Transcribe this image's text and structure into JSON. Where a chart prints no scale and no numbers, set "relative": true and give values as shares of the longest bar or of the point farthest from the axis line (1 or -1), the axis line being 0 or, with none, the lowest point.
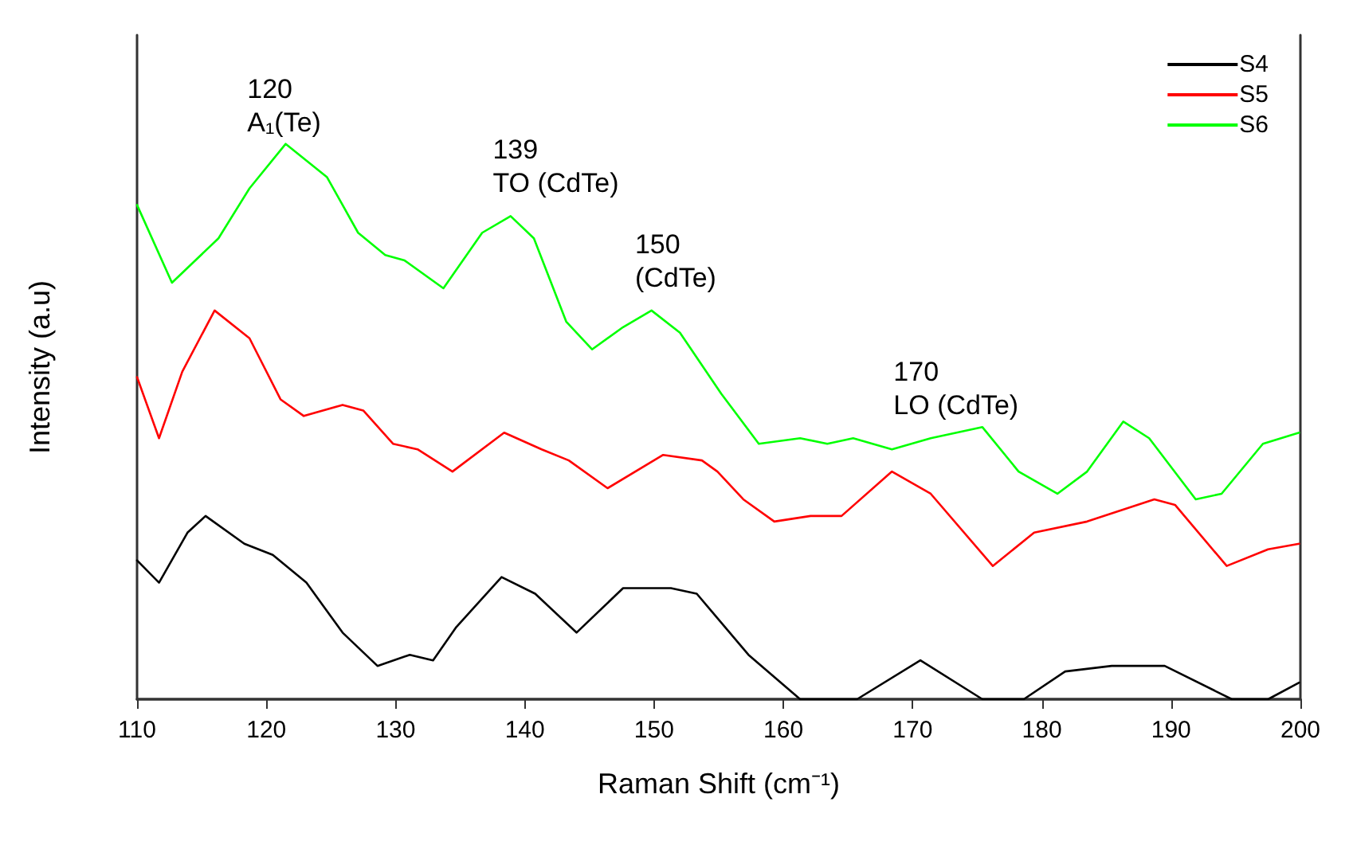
{
  "chart_data": {
    "type": "line",
    "relative": true,
    "xlabel": "Raman Shift (cm⁻¹)",
    "ylabel": "Intensity (a.u)",
    "xlim": [
      110,
      200
    ],
    "xticks": [
      110,
      120,
      130,
      140,
      150,
      160,
      170,
      180,
      190,
      200
    ],
    "grid": false,
    "legend": "top right",
    "marker": "none",
    "line_style": "solid",
    "annotations": [
      {
        "text": "120\nA₁(Te)",
        "x": 120,
        "y": 0.98
      },
      {
        "text": "139\nTO (CdTe)",
        "x": 139,
        "y": 0.87
      },
      {
        "text": "150\n(CdTe)",
        "x": 150,
        "y": 0.7
      },
      {
        "text": "170\nLO (CdTe)",
        "x": 170,
        "y": 0.47
      }
    ],
    "series": [
      {
        "name": "S4",
        "color": "#000000",
        "x": [
          110,
          111.7,
          113.9,
          115.3,
          118.3,
          120.5,
          123.1,
          125.9,
          128.6,
          131.1,
          132.9,
          134.7,
          138.2,
          140.8,
          144,
          147.6,
          149.2,
          151.3,
          153.3,
          157.3,
          161.3,
          165.7,
          170.6,
          175.4,
          178.6,
          181.8,
          185.4,
          189.5,
          194.7,
          197.5,
          199.9
        ],
        "values": [
          0.25,
          0.21,
          0.3,
          0.33,
          0.28,
          0.26,
          0.21,
          0.12,
          0.06,
          0.08,
          0.07,
          0.13,
          0.22,
          0.19,
          0.12,
          0.2,
          0.2,
          0.2,
          0.19,
          0.08,
          0,
          0,
          0.07,
          0,
          0,
          0.05,
          0.06,
          0.06,
          0,
          0,
          0.03
        ]
      },
      {
        "name": "S5",
        "color": "#ff0000",
        "x": [
          110,
          111.7,
          113.5,
          116,
          118.7,
          121.1,
          122.9,
          125.9,
          127.5,
          129.8,
          131.7,
          134.4,
          138.4,
          141.3,
          143.4,
          146.4,
          150.7,
          153.7,
          154.9,
          156.9,
          159.3,
          162.1,
          164.5,
          168.4,
          171.4,
          176.2,
          179.4,
          183.5,
          188.7,
          190.3,
          194.3,
          197.5,
          199.9
        ],
        "values": [
          0.58,
          0.47,
          0.59,
          0.7,
          0.65,
          0.54,
          0.51,
          0.53,
          0.52,
          0.46,
          0.45,
          0.41,
          0.48,
          0.45,
          0.43,
          0.38,
          0.44,
          0.43,
          0.41,
          0.36,
          0.32,
          0.33,
          0.33,
          0.41,
          0.37,
          0.24,
          0.3,
          0.32,
          0.36,
          0.35,
          0.24,
          0.27,
          0.28
        ]
      },
      {
        "name": "S6",
        "color": "#00ff00",
        "x": [
          110,
          112.7,
          116.3,
          118.7,
          121.5,
          124.7,
          127.1,
          129.2,
          130.7,
          133.7,
          136.7,
          138.9,
          140.7,
          143.2,
          145.2,
          147.6,
          149.8,
          152,
          155.2,
          158.1,
          161.3,
          163.4,
          165.4,
          168.4,
          171.4,
          175.4,
          178.2,
          181.2,
          183.5,
          186.3,
          188.3,
          191.9,
          193.9,
          197.1,
          199.9
        ],
        "values": [
          0.89,
          0.75,
          0.83,
          0.92,
          1,
          0.94,
          0.84,
          0.8,
          0.79,
          0.74,
          0.84,
          0.87,
          0.83,
          0.68,
          0.63,
          0.67,
          0.7,
          0.66,
          0.55,
          0.46,
          0.47,
          0.46,
          0.47,
          0.45,
          0.47,
          0.49,
          0.41,
          0.37,
          0.41,
          0.5,
          0.47,
          0.36,
          0.37,
          0.46,
          0.48
        ]
      }
    ]
  }
}
